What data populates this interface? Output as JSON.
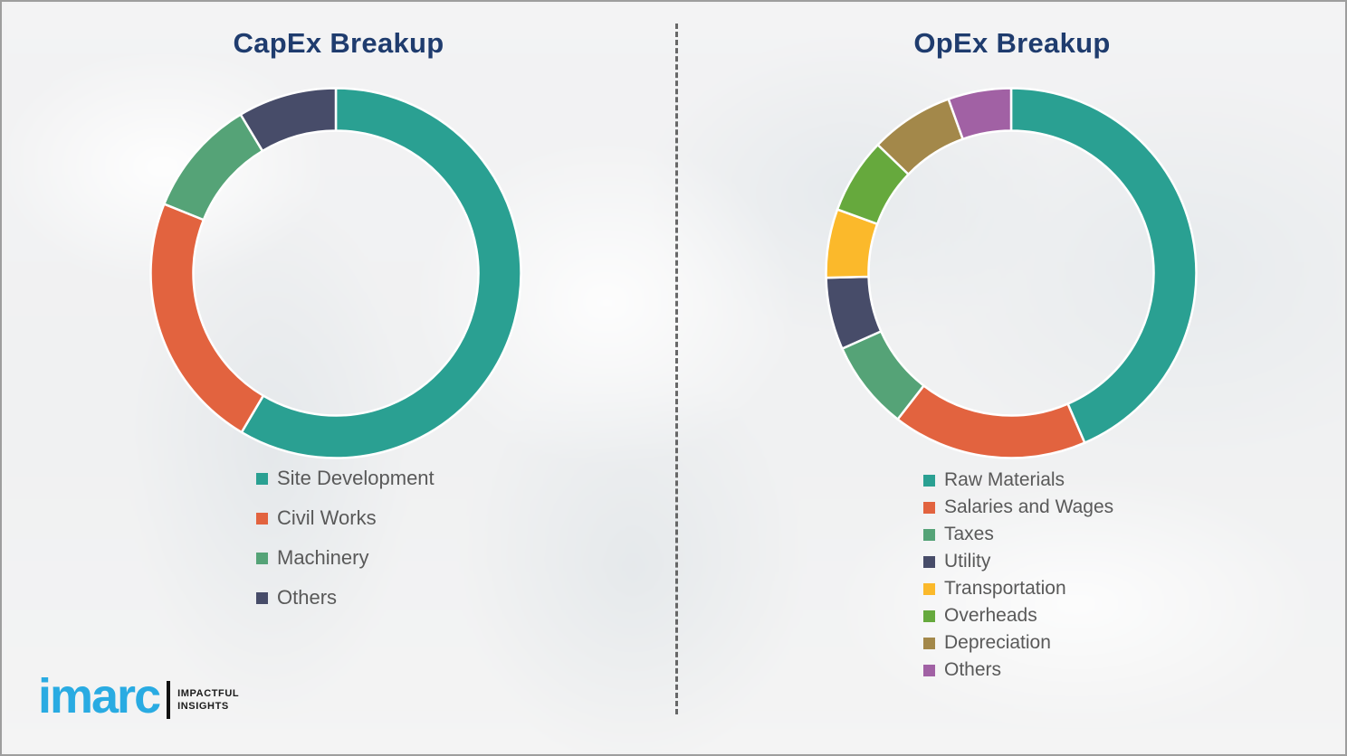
{
  "page": {
    "background_color": "#f1f1f2",
    "divider_color": "#4f4f4f",
    "border_color": "#9e9e9e",
    "title_color": "#1f3c6e",
    "legend_text_color": "#595959"
  },
  "logo": {
    "brand": "imarc",
    "tagline_line1": "IMPACTFUL",
    "tagline_line2": "INSIGHTS",
    "brand_color": "#29abe2",
    "tagline_color": "#1a1a1a"
  },
  "chart_data": [
    {
      "type": "pie",
      "donut": true,
      "title": "CapEx Breakup",
      "labels": [
        "Site Development",
        "Civil Works",
        "Machinery",
        "Others"
      ],
      "values": [
        58.5,
        22.6,
        10.3,
        8.6
      ],
      "values_estimated_from_arcs": true,
      "colors": [
        "#2aa092",
        "#e2633f",
        "#55a377",
        "#474c69"
      ],
      "start_angle": "12 o'clock",
      "direction": "clockwise",
      "legend_position": "below-left",
      "segment_gap_color": "#ffffff"
    },
    {
      "type": "pie",
      "donut": true,
      "title": "OpEx Breakup",
      "labels": [
        "Raw Materials",
        "Salaries and Wages",
        "Taxes",
        "Utility",
        "Transportation",
        "Overheads",
        "Depreciation",
        "Others"
      ],
      "values": [
        43.5,
        17.0,
        7.8,
        6.3,
        6.0,
        6.6,
        7.3,
        5.5
      ],
      "values_estimated_from_arcs": true,
      "colors": [
        "#2aa092",
        "#e2633f",
        "#55a377",
        "#474c69",
        "#fbb92b",
        "#66a93d",
        "#a3884a",
        "#a161a4"
      ],
      "start_angle": "12 o'clock",
      "direction": "clockwise",
      "legend_position": "below-left",
      "segment_gap_color": "#ffffff"
    }
  ]
}
